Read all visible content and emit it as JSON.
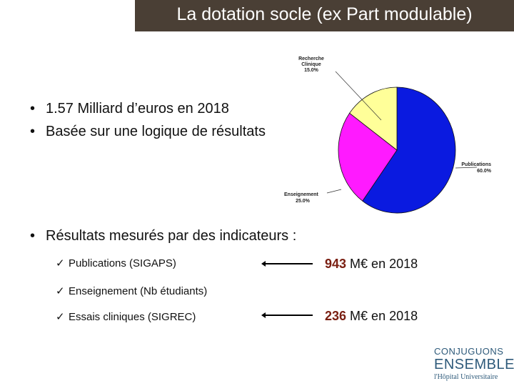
{
  "slide": {
    "title": "La dotation socle (ex Part modulable)",
    "bullets": [
      "1.57 Milliard d’euros en 2018",
      "Basée sur une logique de résultats",
      "Résultats mesurés par des indicateurs :"
    ],
    "bullet_symbol": "•",
    "check_symbol": "✓",
    "indicators": [
      {
        "label": "Publications (SIGAPS)",
        "amount": "943",
        "suffix": " M€ en 2018"
      },
      {
        "label": "Enseignement (Nb étudiants)"
      },
      {
        "label": "Essais cliniques (SIGREC)",
        "amount": "236",
        "suffix": " M€ en 2018"
      }
    ],
    "accent_color": "#7a1f12",
    "title_bar_color": "#4a3f35"
  },
  "chart_data": {
    "type": "pie",
    "slices": [
      {
        "label": "Publications",
        "value": 60.0,
        "display": "60.0%",
        "color": "#0a1ae0"
      },
      {
        "label": "Enseignement",
        "value": 25.0,
        "display": "25.0%",
        "color": "#ff1aff"
      },
      {
        "label": "Recherche Clinique",
        "value": 15.0,
        "display": "15.0%",
        "color": "#ffff99"
      }
    ]
  },
  "logo": {
    "line1": "CONJUGUONS",
    "line2": "ENSEMBLE",
    "line3": "l'Hôpital Universitaire"
  }
}
